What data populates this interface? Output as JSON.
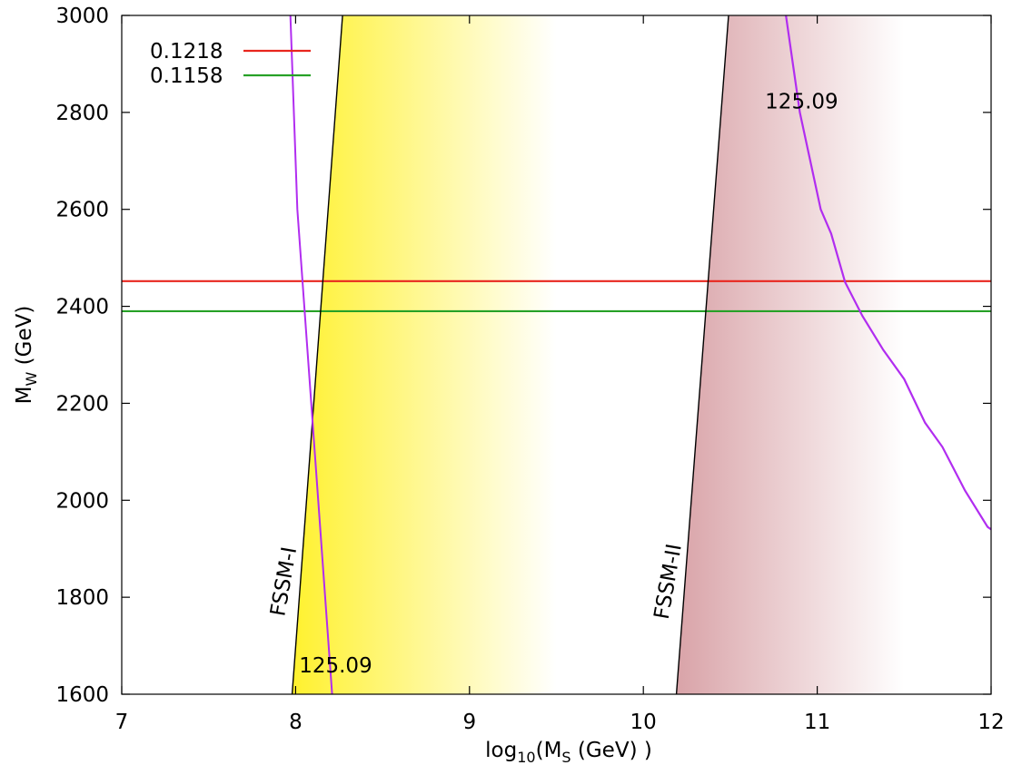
{
  "chart_data": {
    "type": "line",
    "title": "",
    "xlabel": {
      "base": "log",
      "sub": "10",
      "mid": "(M",
      "sub2": "S",
      "tail": "  (GeV) )"
    },
    "ylabel": {
      "base": "M",
      "sub": "W",
      "tail": "  (GeV)"
    },
    "xlim": [
      7,
      12
    ],
    "ylim": [
      1600,
      3000
    ],
    "xticks": [
      7,
      8,
      9,
      10,
      11,
      12
    ],
    "yticks": [
      1600,
      1800,
      2000,
      2200,
      2400,
      2600,
      2800,
      3000
    ],
    "grid": false,
    "legend_position": "top-left",
    "series": [
      {
        "name": "0.1218",
        "color": "#e8261e",
        "type": "hline",
        "y": 2452
      },
      {
        "name": "0.1158",
        "color": "#27a127",
        "type": "hline",
        "y": 2390
      }
    ],
    "boundaries": [
      {
        "label": "FSSM-I",
        "color": "#000000",
        "points": [
          [
            7.98,
            1600
          ],
          [
            8.27,
            3000
          ]
        ]
      },
      {
        "label": "FSSM-II",
        "color": "#000000",
        "points": [
          [
            10.19,
            1600
          ],
          [
            10.49,
            3000
          ]
        ]
      }
    ],
    "shaded_regions": [
      {
        "label": "FSSM-I",
        "color": "#fff12e",
        "left_boundary": "FSSM-I",
        "fade_to": 9.5
      },
      {
        "label": "FSSM-II",
        "color": "#d9a3a8",
        "left_boundary": "FSSM-II",
        "fade_to": 11.5
      }
    ],
    "contours": [
      {
        "name": "125.09",
        "color": "#b12df0",
        "points": [
          [
            8.21,
            1600
          ],
          [
            8.17,
            1800
          ],
          [
            8.13,
            2000
          ],
          [
            8.09,
            2200
          ],
          [
            8.05,
            2400
          ],
          [
            8.01,
            2600
          ],
          [
            7.99,
            2800
          ],
          [
            7.97,
            3000
          ]
        ]
      },
      {
        "name": "125.09",
        "color": "#b12df0",
        "points": [
          [
            10.82,
            3000
          ],
          [
            10.86,
            2900
          ],
          [
            10.9,
            2800
          ],
          [
            10.96,
            2700
          ],
          [
            11.02,
            2600
          ],
          [
            11.08,
            2550
          ],
          [
            11.16,
            2450
          ],
          [
            11.26,
            2380
          ],
          [
            11.38,
            2310
          ],
          [
            11.5,
            2250
          ],
          [
            11.62,
            2160
          ],
          [
            11.72,
            2110
          ],
          [
            11.85,
            2020
          ],
          [
            11.98,
            1945
          ],
          [
            12.0,
            1940
          ]
        ]
      }
    ],
    "annotations": [
      {
        "text": "125.09",
        "x": 8.02,
        "y": 1645
      },
      {
        "text": "125.09",
        "x": 10.7,
        "y": 2808
      },
      {
        "text": "FSSM-I",
        "x": 7.97,
        "y": 1830
      },
      {
        "text": "FSSM-II",
        "x": 10.18,
        "y": 1830
      }
    ]
  }
}
